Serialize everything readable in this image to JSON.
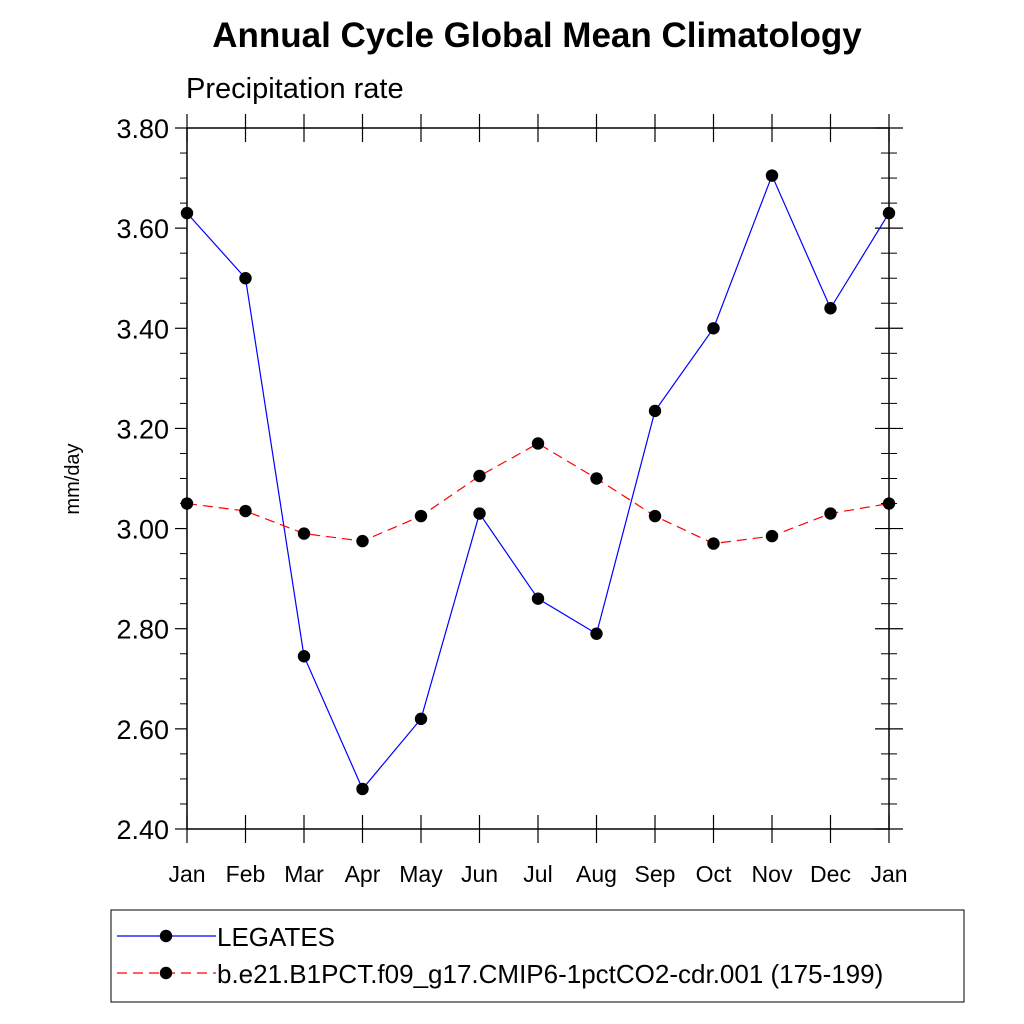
{
  "chart_data": {
    "type": "line",
    "title": "Annual Cycle Global Mean Climatology",
    "subtitle": "Precipitation rate",
    "xlabel": "",
    "ylabel": "mm/day",
    "categories": [
      "Jan",
      "Feb",
      "Mar",
      "Apr",
      "May",
      "Jun",
      "Jul",
      "Aug",
      "Sep",
      "Oct",
      "Nov",
      "Dec",
      "Jan"
    ],
    "ylim": [
      2.4,
      3.8
    ],
    "yticks": [
      "2.40",
      "2.60",
      "2.80",
      "3.00",
      "3.20",
      "3.40",
      "3.60",
      "3.80"
    ],
    "grid": false,
    "legend_position": "bottom",
    "series": [
      {
        "name": "LEGATES",
        "color": "#0000ff",
        "line_style": "solid",
        "marker": "filled-circle",
        "values": [
          3.63,
          3.5,
          2.745,
          2.48,
          2.62,
          3.03,
          2.86,
          2.79,
          3.235,
          3.4,
          3.705,
          3.44,
          3.63
        ]
      },
      {
        "name": "b.e21.B1PCT.f09_g17.CMIP6-1pctCO2-cdr.001 (175-199)",
        "color": "#ff0000",
        "line_style": "dashed",
        "marker": "filled-circle",
        "values": [
          3.05,
          3.035,
          2.99,
          2.975,
          3.025,
          3.105,
          3.17,
          3.1,
          3.025,
          2.97,
          2.985,
          3.03,
          3.05
        ]
      }
    ]
  }
}
